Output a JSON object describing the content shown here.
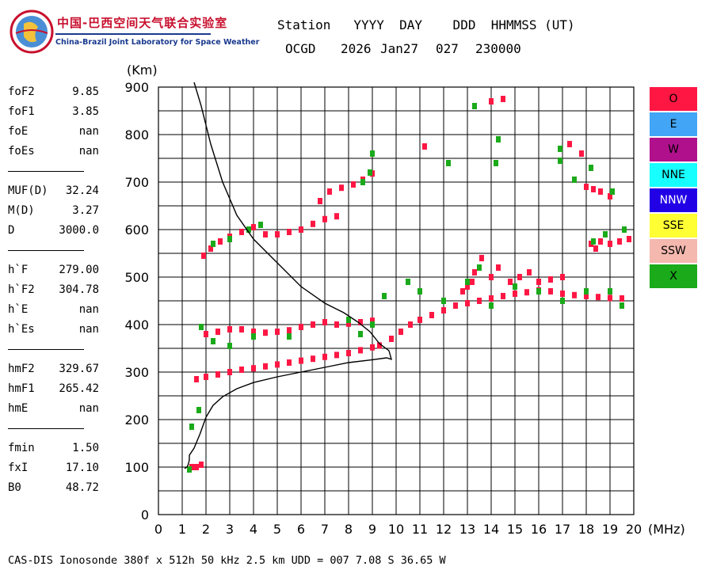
{
  "header": {
    "label_line": "Station   YYYY  DAY    DDD  HHMMSS (UT)",
    "station": "OCGD",
    "year": "2026",
    "date": "Jan27",
    "doy": "027",
    "time": "230000"
  },
  "logo": {
    "cn": "中国-巴西空间天气联合实验室",
    "en": "China-Brazil Joint Laboratory for Space Weather"
  },
  "params": [
    [
      {
        "k": "foF2",
        "v": "9.85"
      },
      {
        "k": "foF1",
        "v": "3.85"
      },
      {
        "k": "foE",
        "v": "nan"
      },
      {
        "k": "foEs",
        "v": "nan"
      }
    ],
    [
      {
        "k": "MUF(D)",
        "v": "32.24"
      },
      {
        "k": "M(D)",
        "v": "3.27"
      },
      {
        "k": "D",
        "v": "3000.0"
      }
    ],
    [
      {
        "k": "h`F",
        "v": "279.00"
      },
      {
        "k": "h`F2",
        "v": "304.78"
      },
      {
        "k": "h`E",
        "v": "nan"
      },
      {
        "k": "h`Es",
        "v": "nan"
      }
    ],
    [
      {
        "k": "hmF2",
        "v": "329.67"
      },
      {
        "k": "hmF1",
        "v": "265.42"
      },
      {
        "k": "hmE",
        "v": "nan"
      }
    ],
    [
      {
        "k": "fmin",
        "v": "1.50"
      },
      {
        "k": "fxI",
        "v": "17.10"
      },
      {
        "k": "B0",
        "v": "48.72"
      }
    ]
  ],
  "legend": [
    {
      "label": "O",
      "color": "#ff1744"
    },
    {
      "label": "E",
      "color": "#42a5f5"
    },
    {
      "label": "W",
      "color": "#b0108c"
    },
    {
      "label": "NNE",
      "color": "#18ffff"
    },
    {
      "label": "NNW",
      "color": "#2200e6"
    },
    {
      "label": "SSE",
      "color": "#ffff33"
    },
    {
      "label": "SSW",
      "color": "#f4b8ae"
    },
    {
      "label": "X",
      "color": "#1aaa1a"
    }
  ],
  "footer": "CAS-DIS Ionosonde 380f x 512h 50 kHz 2.5 km UDD = 007 7.08 S 36.65 W",
  "chart_data": {
    "type": "scatter",
    "x_unit": "(MHz)",
    "y_unit": "(Km)",
    "xlim": [
      0,
      20
    ],
    "ylim": [
      0,
      900
    ],
    "x_ticks": [
      0,
      1,
      2,
      3,
      4,
      5,
      6,
      7,
      8,
      9,
      10,
      11,
      12,
      13,
      14,
      15,
      16,
      17,
      18,
      19,
      20
    ],
    "y_ticks": [
      0,
      100,
      200,
      300,
      400,
      500,
      600,
      700,
      800,
      900
    ],
    "grid": true,
    "series": [
      {
        "name": "O",
        "color": "#ff1744",
        "points": [
          [
            1.4,
            100
          ],
          [
            1.6,
            100
          ],
          [
            1.8,
            105
          ],
          [
            1.6,
            285
          ],
          [
            2.0,
            290
          ],
          [
            2.5,
            295
          ],
          [
            3.0,
            300
          ],
          [
            3.5,
            305
          ],
          [
            4.0,
            308
          ],
          [
            4.5,
            312
          ],
          [
            5.0,
            316
          ],
          [
            5.5,
            320
          ],
          [
            6.0,
            324
          ],
          [
            6.5,
            328
          ],
          [
            7.0,
            332
          ],
          [
            7.5,
            336
          ],
          [
            8.0,
            340
          ],
          [
            8.5,
            346
          ],
          [
            9.0,
            352
          ],
          [
            9.3,
            356
          ],
          [
            9.8,
            370
          ],
          [
            10.2,
            385
          ],
          [
            10.6,
            400
          ],
          [
            11.0,
            410
          ],
          [
            11.5,
            420
          ],
          [
            12.0,
            430
          ],
          [
            12.5,
            440
          ],
          [
            13.0,
            445
          ],
          [
            13.5,
            450
          ],
          [
            14.0,
            455
          ],
          [
            14.5,
            460
          ],
          [
            15.0,
            465
          ],
          [
            15.5,
            468
          ],
          [
            16.0,
            472
          ],
          [
            16.5,
            470
          ],
          [
            17.0,
            465
          ],
          [
            17.5,
            462
          ],
          [
            18.0,
            460
          ],
          [
            18.5,
            458
          ],
          [
            19.0,
            456
          ],
          [
            19.5,
            455
          ],
          [
            13.0,
            480
          ],
          [
            13.3,
            510
          ],
          [
            13.6,
            540
          ],
          [
            14.0,
            500
          ],
          [
            14.3,
            520
          ],
          [
            14.8,
            490
          ],
          [
            15.2,
            500
          ],
          [
            15.6,
            510
          ],
          [
            16.0,
            490
          ],
          [
            16.5,
            495
          ],
          [
            17.0,
            500
          ],
          [
            12.8,
            470
          ],
          [
            13.2,
            490
          ],
          [
            18.2,
            570
          ],
          [
            18.6,
            575
          ],
          [
            19.0,
            570
          ],
          [
            19.4,
            575
          ],
          [
            19.8,
            580
          ],
          [
            18.4,
            560
          ],
          [
            2.0,
            380
          ],
          [
            2.5,
            385
          ],
          [
            3.0,
            390
          ],
          [
            3.5,
            390
          ],
          [
            4.0,
            385
          ],
          [
            4.5,
            383
          ],
          [
            5.0,
            385
          ],
          [
            5.5,
            388
          ],
          [
            6.0,
            395
          ],
          [
            6.5,
            400
          ],
          [
            7.0,
            405
          ],
          [
            7.5,
            400
          ],
          [
            8.0,
            402
          ],
          [
            8.5,
            405
          ],
          [
            9.0,
            408
          ],
          [
            1.9,
            545
          ],
          [
            2.2,
            560
          ],
          [
            2.6,
            575
          ],
          [
            3.0,
            585
          ],
          [
            3.5,
            595
          ],
          [
            4.0,
            605
          ],
          [
            4.5,
            590
          ],
          [
            5.0,
            590
          ],
          [
            5.5,
            595
          ],
          [
            6.0,
            600
          ],
          [
            6.5,
            612
          ],
          [
            7.0,
            622
          ],
          [
            7.5,
            628
          ],
          [
            6.8,
            660
          ],
          [
            7.2,
            680
          ],
          [
            7.7,
            688
          ],
          [
            8.2,
            695
          ],
          [
            8.6,
            705
          ],
          [
            9.0,
            718
          ],
          [
            11.2,
            775
          ],
          [
            14.0,
            870
          ],
          [
            14.5,
            875
          ],
          [
            17.3,
            780
          ],
          [
            17.8,
            760
          ],
          [
            18.0,
            690
          ],
          [
            18.3,
            685
          ],
          [
            18.6,
            680
          ],
          [
            19.0,
            670
          ]
        ]
      },
      {
        "name": "X",
        "color": "#1aaa1a",
        "points": [
          [
            1.3,
            95
          ],
          [
            1.4,
            185
          ],
          [
            1.7,
            220
          ],
          [
            1.8,
            395
          ],
          [
            2.3,
            365
          ],
          [
            3.0,
            355
          ],
          [
            4.0,
            375
          ],
          [
            5.5,
            375
          ],
          [
            2.3,
            570
          ],
          [
            3.0,
            580
          ],
          [
            3.8,
            600
          ],
          [
            4.3,
            610
          ],
          [
            8.0,
            410
          ],
          [
            8.5,
            380
          ],
          [
            9.0,
            400
          ],
          [
            9.5,
            460
          ],
          [
            10.5,
            490
          ],
          [
            11.0,
            470
          ],
          [
            12.0,
            450
          ],
          [
            13.0,
            490
          ],
          [
            13.5,
            520
          ],
          [
            14.0,
            440
          ],
          [
            15.0,
            480
          ],
          [
            16.0,
            470
          ],
          [
            17.0,
            450
          ],
          [
            18.0,
            470
          ],
          [
            19.0,
            470
          ],
          [
            19.5,
            440
          ],
          [
            19.6,
            600
          ],
          [
            18.8,
            590
          ],
          [
            18.3,
            575
          ],
          [
            9.0,
            760
          ],
          [
            8.9,
            720
          ],
          [
            8.6,
            700
          ],
          [
            13.3,
            860
          ],
          [
            14.3,
            790
          ],
          [
            14.2,
            740
          ],
          [
            16.9,
            745
          ],
          [
            16.9,
            770
          ],
          [
            12.2,
            740
          ],
          [
            18.2,
            730
          ],
          [
            17.5,
            705
          ],
          [
            19.1,
            680
          ]
        ]
      }
    ],
    "trace_line": [
      [
        1.1,
        97
      ],
      [
        1.2,
        100
      ],
      [
        1.25,
        105
      ],
      [
        1.3,
        115
      ],
      [
        1.3,
        125
      ],
      [
        1.5,
        140
      ],
      [
        1.75,
        170
      ],
      [
        2.0,
        205
      ],
      [
        2.3,
        230
      ],
      [
        2.7,
        248
      ],
      [
        3.3,
        265
      ],
      [
        4.0,
        278
      ],
      [
        5.0,
        290
      ],
      [
        6.0,
        300
      ],
      [
        7.0,
        310
      ],
      [
        8.0,
        320
      ],
      [
        9.0,
        326
      ],
      [
        9.6,
        330
      ],
      [
        9.8,
        327
      ],
      [
        9.7,
        345
      ],
      [
        9.3,
        360
      ],
      [
        8.9,
        385
      ],
      [
        8.4,
        405
      ],
      [
        7.8,
        425
      ],
      [
        7.0,
        445
      ],
      [
        6.0,
        480
      ],
      [
        5.0,
        530
      ],
      [
        4.0,
        580
      ],
      [
        3.3,
        630
      ],
      [
        2.7,
        700
      ],
      [
        2.2,
        780
      ],
      [
        1.8,
        860
      ],
      [
        1.5,
        910
      ]
    ]
  }
}
